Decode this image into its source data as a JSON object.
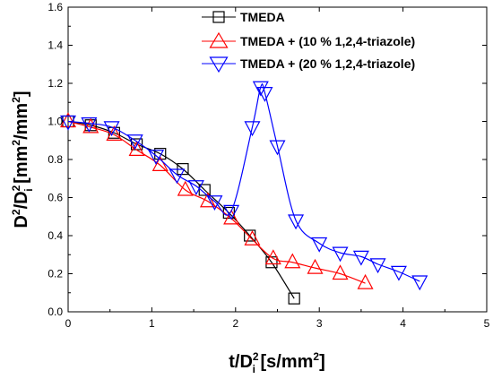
{
  "chart_data": {
    "type": "line",
    "xlim": [
      0,
      5
    ],
    "ylim": [
      0,
      1.6
    ],
    "x_ticks": [
      "0",
      "1",
      "2",
      "3",
      "4",
      "5"
    ],
    "y_ticks": [
      "0.0",
      "0.2",
      "0.4",
      "0.6",
      "0.8",
      "1.0",
      "1.2",
      "1.4",
      "1.6"
    ],
    "xlabel": {
      "base": "t/D",
      "sub": "i",
      "sup": "2",
      "unit_open": " [s/mm",
      "unit_sup": "2",
      "unit_close": "]"
    },
    "ylabel": {
      "p1": "D",
      "p1_sup": "2",
      "p2": "/D",
      "p2_sub": "i",
      "p2_sup": "2",
      "unit_open": " [mm",
      "unit_sup1": "2",
      "unit_mid": "/mm",
      "unit_sup2": "2",
      "unit_close": "]"
    },
    "grid": false,
    "legend_position": "top-right",
    "series": [
      {
        "name": "TMEDA",
        "color": "#000000",
        "marker": "square",
        "x": [
          0.0,
          0.27,
          0.55,
          0.82,
          1.1,
          1.37,
          1.63,
          1.92,
          2.17,
          2.43,
          2.7
        ],
        "y": [
          1.0,
          0.98,
          0.94,
          0.88,
          0.83,
          0.75,
          0.64,
          0.52,
          0.4,
          0.26,
          0.07
        ]
      },
      {
        "name": "TMEDA + (10 % 1,2,4-triazole)",
        "color": "#ff0000",
        "marker": "triangle-up",
        "x": [
          0.0,
          0.27,
          0.55,
          0.82,
          1.1,
          1.4,
          1.67,
          1.95,
          2.2,
          2.45,
          2.68,
          2.95,
          3.25,
          3.55
        ],
        "y": [
          1.0,
          0.97,
          0.93,
          0.85,
          0.77,
          0.64,
          0.58,
          0.49,
          0.38,
          0.28,
          0.26,
          0.23,
          0.2,
          0.15
        ]
      },
      {
        "name": "TMEDA + (20 % 1,2,4-triazole)",
        "color": "#0000ff",
        "marker": "triangle-down",
        "x": [
          0.0,
          0.25,
          0.52,
          0.8,
          1.05,
          1.3,
          1.53,
          1.75,
          1.95,
          2.2,
          2.3,
          2.35,
          2.5,
          2.72,
          3.0,
          3.25,
          3.5,
          3.7,
          3.95,
          4.2
        ],
        "y": [
          1.0,
          0.99,
          0.97,
          0.9,
          0.82,
          0.72,
          0.66,
          0.58,
          0.53,
          0.97,
          1.18,
          1.15,
          0.87,
          0.48,
          0.36,
          0.31,
          0.29,
          0.25,
          0.21,
          0.16
        ]
      }
    ]
  }
}
